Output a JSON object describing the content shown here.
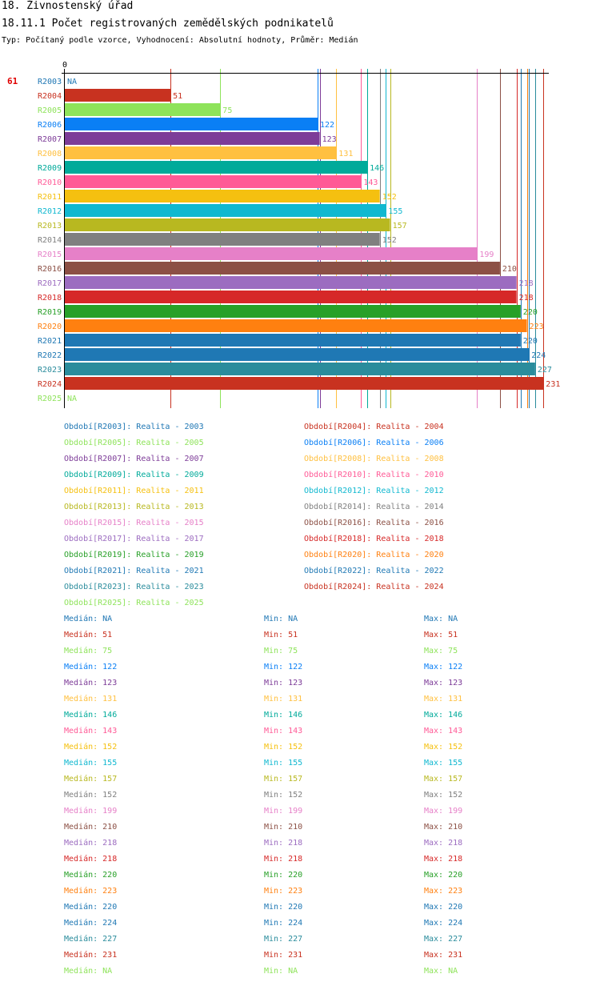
{
  "header": {
    "title": "18. Živnostenský úřad",
    "subtitle": "18.11.1 Počet registrovaných zemědělských podnikatelů",
    "meta": "Typ: Počítaný podle vzorce, Vyhodnocení: Absolutní hodnoty, Průměr: Medián"
  },
  "chart_data": {
    "type": "bar",
    "orientation": "horizontal",
    "title": "18.11.1 Počet registrovaných zemědělských podnikatelů",
    "axis_zero_label": "0",
    "side_marker": "61",
    "xlim": [
      0,
      231
    ],
    "categories": [
      "R2003",
      "R2004",
      "R2005",
      "R2006",
      "R2007",
      "R2008",
      "R2009",
      "R2010",
      "R2011",
      "R2012",
      "R2013",
      "R2014",
      "R2015",
      "R2016",
      "R2017",
      "R2018",
      "R2019",
      "R2020",
      "R2021",
      "R2022",
      "R2023",
      "R2024",
      "R2025"
    ],
    "values": [
      null,
      51,
      75,
      122,
      123,
      131,
      146,
      143,
      152,
      155,
      157,
      152,
      199,
      210,
      218,
      218,
      220,
      223,
      220,
      224,
      227,
      231,
      null
    ],
    "value_labels": [
      "NA",
      "51",
      "75",
      "122",
      "123",
      "131",
      "146",
      "143",
      "152",
      "155",
      "157",
      "152",
      "199",
      "210",
      "218",
      "218",
      "220",
      "223",
      "220",
      "224",
      "227",
      "231",
      "NA"
    ],
    "colors": [
      "#1f77b4",
      "#c83220",
      "#8ee35a",
      "#0a7ff5",
      "#7d3c98",
      "#ffc040",
      "#00aa9a",
      "#ff5a96",
      "#f5c010",
      "#10b8d0",
      "#b8b820",
      "#808080",
      "#e680c8",
      "#8c5045",
      "#9c6cc0",
      "#d62828",
      "#28a028",
      "#ff8010",
      "#1f78b4",
      "#1f78b4",
      "#2a8c9c",
      "#c83220",
      "#8ee35a"
    ]
  },
  "legend": [
    "Období[R2003]: Realita - 2003",
    "Období[R2004]: Realita - 2004",
    "Období[R2005]: Realita - 2005",
    "Období[R2006]: Realita - 2006",
    "Období[R2007]: Realita - 2007",
    "Období[R2008]: Realita - 2008",
    "Období[R2009]: Realita - 2009",
    "Období[R2010]: Realita - 2010",
    "Období[R2011]: Realita - 2011",
    "Období[R2012]: Realita - 2012",
    "Období[R2013]: Realita - 2013",
    "Období[R2014]: Realita - 2014",
    "Období[R2015]: Realita - 2015",
    "Období[R2016]: Realita - 2016",
    "Období[R2017]: Realita - 2017",
    "Období[R2018]: Realita - 2018",
    "Období[R2019]: Realita - 2019",
    "Období[R2020]: Realita - 2020",
    "Období[R2021]: Realita - 2021",
    "Období[R2022]: Realita - 2022",
    "Období[R2023]: Realita - 2023",
    "Období[R2024]: Realita - 2024",
    "Období[R2025]: Realita - 2025"
  ],
  "stats": {
    "median_label": "Medián:",
    "min_label": "Min:",
    "max_label": "Max:",
    "rows": [
      {
        "median": "NA",
        "min": "NA",
        "max": "NA"
      },
      {
        "median": "51",
        "min": "51",
        "max": "51"
      },
      {
        "median": "75",
        "min": "75",
        "max": "75"
      },
      {
        "median": "122",
        "min": "122",
        "max": "122"
      },
      {
        "median": "123",
        "min": "123",
        "max": "123"
      },
      {
        "median": "131",
        "min": "131",
        "max": "131"
      },
      {
        "median": "146",
        "min": "146",
        "max": "146"
      },
      {
        "median": "143",
        "min": "143",
        "max": "143"
      },
      {
        "median": "152",
        "min": "152",
        "max": "152"
      },
      {
        "median": "155",
        "min": "155",
        "max": "155"
      },
      {
        "median": "157",
        "min": "157",
        "max": "157"
      },
      {
        "median": "152",
        "min": "152",
        "max": "152"
      },
      {
        "median": "199",
        "min": "199",
        "max": "199"
      },
      {
        "median": "210",
        "min": "210",
        "max": "210"
      },
      {
        "median": "218",
        "min": "218",
        "max": "218"
      },
      {
        "median": "218",
        "min": "218",
        "max": "218"
      },
      {
        "median": "220",
        "min": "220",
        "max": "220"
      },
      {
        "median": "223",
        "min": "223",
        "max": "223"
      },
      {
        "median": "220",
        "min": "220",
        "max": "220"
      },
      {
        "median": "224",
        "min": "224",
        "max": "224"
      },
      {
        "median": "227",
        "min": "227",
        "max": "227"
      },
      {
        "median": "231",
        "min": "231",
        "max": "231"
      },
      {
        "median": "NA",
        "min": "NA",
        "max": "NA"
      }
    ]
  }
}
